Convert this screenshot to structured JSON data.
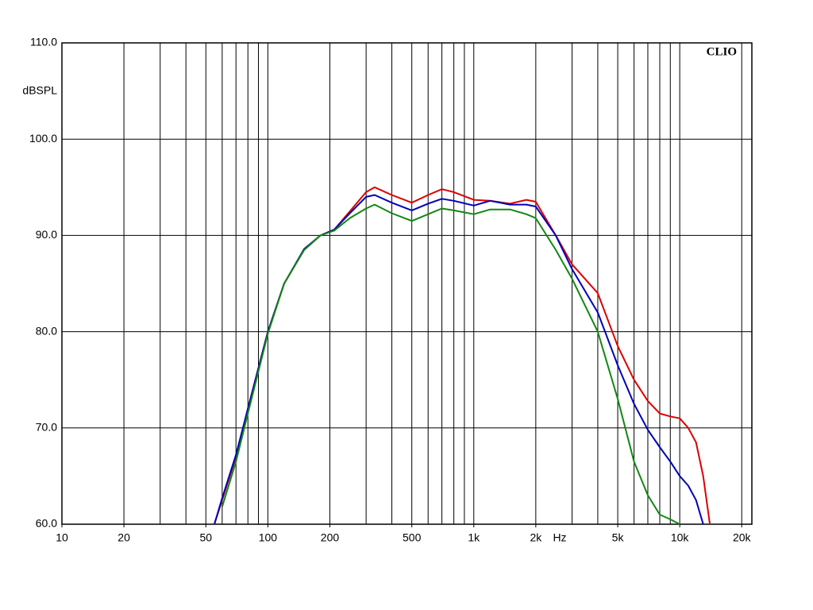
{
  "chart_data": {
    "type": "line",
    "brand": "CLIO",
    "y_label": "dBSPL",
    "x_unit": "Hz",
    "xscale": "log",
    "xlim": [
      10,
      22400
    ],
    "ylim": [
      60,
      110
    ],
    "xticks": [
      10,
      20,
      50,
      100,
      200,
      500,
      {
        "value": 1000,
        "label": "1k"
      },
      {
        "value": 2000,
        "label": "2k"
      },
      {
        "value": 5000,
        "label": "5k"
      },
      {
        "value": 10000,
        "label": "10k"
      },
      {
        "value": 20000,
        "label": "20k"
      }
    ],
    "xgrid": [
      20,
      30,
      40,
      50,
      60,
      70,
      80,
      90,
      100,
      200,
      300,
      400,
      500,
      600,
      700,
      800,
      900,
      1000,
      2000,
      3000,
      4000,
      5000,
      6000,
      7000,
      8000,
      9000,
      10000,
      20000
    ],
    "yticks": [
      {
        "value": 60,
        "label": "60.0"
      },
      {
        "value": 70,
        "label": "70.0"
      },
      {
        "value": 80,
        "label": "80.0"
      },
      {
        "value": 90,
        "label": "90.0"
      },
      {
        "value": 100,
        "label": "100.0"
      },
      {
        "value": 110,
        "label": "110.0"
      }
    ],
    "grid": true,
    "x": [
      55,
      60,
      70,
      80,
      100,
      120,
      150,
      180,
      210,
      250,
      300,
      330,
      400,
      500,
      600,
      700,
      800,
      1000,
      1200,
      1500,
      1800,
      2000,
      2500,
      3000,
      4000,
      5000,
      6000,
      7000,
      8000,
      9000,
      10000,
      11000,
      12000,
      13000,
      14000
    ],
    "series": [
      {
        "color": "#dd0000",
        "values": [
          60,
          62.5,
          67,
          72,
          80,
          85,
          88.5,
          90,
          90.6,
          92.5,
          94.5,
          95,
          94.2,
          93.4,
          94.2,
          94.8,
          94.5,
          93.7,
          93.6,
          93.3,
          93.7,
          93.5,
          90,
          87,
          84,
          78.5,
          75,
          72.8,
          71.5,
          71.2,
          71,
          70,
          68.5,
          65,
          60
        ]
      },
      {
        "color": "#0000bb",
        "values": [
          60,
          62.7,
          67.2,
          72,
          80,
          85,
          88.6,
          90,
          90.6,
          92.3,
          94,
          94.2,
          93.4,
          92.6,
          93.3,
          93.8,
          93.6,
          93.1,
          93.6,
          93.2,
          93.2,
          93,
          90,
          86.5,
          82,
          76.5,
          72.5,
          69.8,
          68,
          66.5,
          65,
          64,
          62.5,
          60,
          null
        ]
      },
      {
        "color": "#118811",
        "values": [
          null,
          61.8,
          66.5,
          71.5,
          79.8,
          85,
          88.5,
          90,
          90.5,
          91.8,
          92.8,
          93.2,
          92.3,
          91.5,
          92.2,
          92.8,
          92.6,
          92.2,
          92.7,
          92.7,
          92.2,
          91.8,
          88.5,
          85.5,
          80,
          73,
          66.5,
          63,
          61,
          60.5,
          60,
          null,
          null,
          null,
          null
        ]
      }
    ]
  }
}
